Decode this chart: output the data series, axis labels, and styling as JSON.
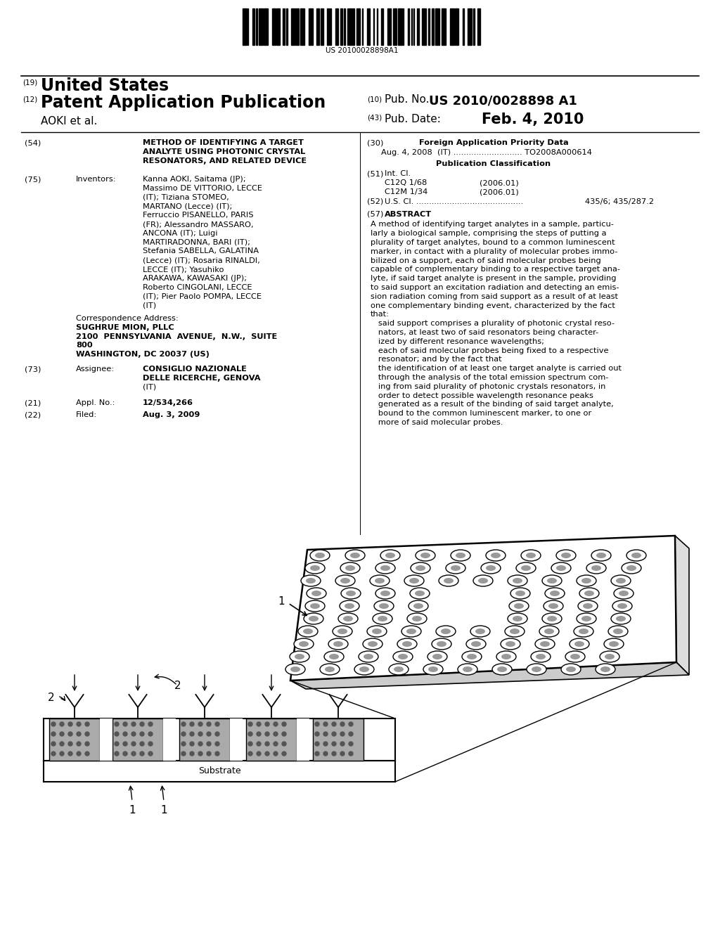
{
  "bg_color": "#ffffff",
  "barcode_text": "US 20100028898A1",
  "header_19": "(19)",
  "header_19_text": "United States",
  "header_12": "(12)",
  "header_12_text": "Patent Application Publication",
  "header_10_label": "(10)",
  "header_10_text": "Pub. No.:",
  "pub_no": "US 2010/0028898 A1",
  "header_43_label": "(43)",
  "header_43_text": "Pub. Date:",
  "pub_date": "Feb. 4, 2010",
  "aoki": "AOKI et al.",
  "section54_num": "(54)",
  "section54_line1": "METHOD OF IDENTIFYING A TARGET",
  "section54_line2": "ANALYTE USING PHOTONIC CRYSTAL",
  "section54_line3": "RESONATORS, AND RELATED DEVICE",
  "section30_num": "(30)",
  "section30_title": "Foreign Application Priority Data",
  "section30_content": "Aug. 4, 2008  (IT) ........................... TO2008A000614",
  "pub_class_title": "Publication Classification",
  "section51_num": "(51)",
  "section51_label": "Int. Cl.",
  "section51_c1_name": "C12Q 1/68",
  "section51_c1_year": "(2006.01)",
  "section51_c2_name": "C12M 1/34",
  "section51_c2_year": "(2006.01)",
  "section52_num": "(52)",
  "section52_label": "U.S. Cl.",
  "section52_value": "435/6; 435/287.2",
  "section57_num": "(57)",
  "section57_label": "ABSTRACT",
  "abstract_lines": [
    "A method of identifying target analytes in a sample, particu-",
    "larly a biological sample, comprising the steps of putting a",
    "plurality of target analytes, bound to a common luminescent",
    "marker, in contact with a plurality of molecular probes immo-",
    "bilized on a support, each of said molecular probes being",
    "capable of complementary binding to a respective target ana-",
    "lyte, if said target analyte is present in the sample, providing",
    "to said support an excitation radiation and detecting an emis-",
    "sion radiation coming from said support as a result of at least",
    "one complementary binding event, characterized by the fact",
    "that:",
    "   said support comprises a plurality of photonic crystal reso-",
    "   nators, at least two of said resonators being character-",
    "   ized by different resonance wavelengths;",
    "   each of said molecular probes being fixed to a respective",
    "   resonator; and by the fact that",
    "   the identification of at least one target analyte is carried out",
    "   through the analysis of the total emission spectrum com-",
    "   ing from said plurality of photonic crystals resonators, in",
    "   order to detect possible wavelength resonance peaks",
    "   generated as a result of the binding of said target analyte,",
    "   bound to the common luminescent marker, to one or",
    "   more of said molecular probes."
  ],
  "section75_num": "(75)",
  "section75_label": "Inventors:",
  "inv_lines": [
    [
      "bold",
      "Kanna AOKI",
      ", Saitama (JP);"
    ],
    [
      "bold",
      "Massimo DE VITTORIO",
      ", LECCE"
    ],
    [
      "plain",
      "(IT); ",
      ""
    ],
    [
      "bold2",
      "Tiziana STOMEO",
      ","
    ],
    [
      "plain",
      "MARTANO (Lecce) (IT);",
      ""
    ],
    [
      "bold",
      "Ferruccio PISANELLO",
      ", PARIS"
    ],
    [
      "plain",
      "(FR); ",
      ""
    ],
    [
      "bold",
      "Alessandro MASSARO",
      ","
    ],
    [
      "plain",
      "ANCONA (IT); ",
      ""
    ],
    [
      "bold",
      "Luigi",
      ""
    ],
    [
      "bold",
      "MARTIRADONNA",
      ", BARI (IT);"
    ],
    [
      "bold",
      "Stefania SABELLA",
      ", GALATINA"
    ],
    [
      "plain",
      "(Lecce) (IT); ",
      ""
    ],
    [
      "bold",
      "Rosaria RINALDI",
      ","
    ],
    [
      "plain",
      "LECCE (IT); ",
      ""
    ],
    [
      "bold",
      "Yasuhiko",
      ""
    ],
    [
      "bold",
      "ARAKAWA",
      ", KAWASAKI (JP);"
    ],
    [
      "bold",
      "Roberto CINGOLANI",
      ", LECCE"
    ],
    [
      "plain",
      "(IT); ",
      ""
    ],
    [
      "bold",
      "Pier Paolo POMPA",
      ", LECCE"
    ],
    [
      "plain",
      "(IT)",
      ""
    ]
  ],
  "inv_text_lines": [
    "Kanna AOKI, Saitama (JP);",
    "Massimo DE VITTORIO, LECCE",
    "(IT); Tiziana STOMEO,",
    "MARTANO (Lecce) (IT);",
    "Ferruccio PISANELLO, PARIS",
    "(FR); Alessandro MASSARO,",
    "ANCONA (IT); Luigi",
    "MARTIRADONNA, BARI (IT);",
    "Stefania SABELLA, GALATINA",
    "(Lecce) (IT); Rosaria RINALDI,",
    "LECCE (IT); Yasuhiko",
    "ARAKAWA, KAWASAKI (JP);",
    "Roberto CINGOLANI, LECCE",
    "(IT); Pier Paolo POMPA, LECCE",
    "(IT)"
  ],
  "corr_label": "Correspondence Address:",
  "corr_lines": [
    "SUGHRUE MION, PLLC",
    "2100  PENNSYLVANIA  AVENUE,  N.W.,  SUITE",
    "800",
    "WASHINGTON, DC 20037 (US)"
  ],
  "section73_num": "(73)",
  "section73_label": "Assignee:",
  "section73_lines": [
    "CONSIGLIO NAZIONALE",
    "DELLE RICERCHE, GENOVA",
    "(IT)"
  ],
  "section21_num": "(21)",
  "section21_label": "Appl. No.:",
  "section21_text": "12/534,266",
  "section22_num": "(22)",
  "section22_label": "Filed:",
  "section22_text": "Aug. 3, 2009"
}
